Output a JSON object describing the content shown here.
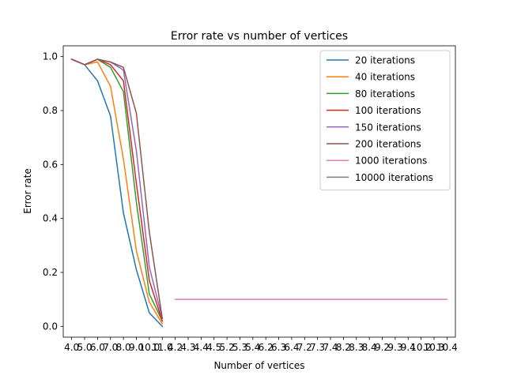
{
  "chart_data": {
    "type": "line",
    "title": "Error rate vs number of vertices",
    "xlabel": "Number of vertices",
    "ylabel": "Error rate",
    "x": [
      "4.0",
      "5.0",
      "6.0",
      "7.0",
      "8.0",
      "9.0",
      "10.0",
      "11.0",
      "4.2",
      "4.3",
      "4.4",
      "4.5",
      "5.2",
      "5.3",
      "5.4",
      "6.2",
      "6.3",
      "6.4",
      "7.2",
      "7.3",
      "7.4",
      "8.2",
      "8.3",
      "8.4",
      "9.2",
      "9.3",
      "9.4",
      "10.2",
      "10.3",
      "10.4"
    ],
    "ylim": [
      -0.04,
      1.04
    ],
    "yticks": [
      0.0,
      0.2,
      0.4,
      0.6,
      0.8,
      1.0
    ],
    "ytick_labels": [
      "0.0",
      "0.2",
      "0.4",
      "0.6",
      "0.8",
      "1.0"
    ],
    "legend_position": "top-right",
    "grid": false,
    "series": [
      {
        "name": "20 iterations",
        "color": "#1f77b4",
        "points": [
          [
            0,
            0.99
          ],
          [
            1,
            0.97
          ],
          [
            2,
            0.91
          ],
          [
            3,
            0.78
          ],
          [
            4,
            0.42
          ],
          [
            5,
            0.21
          ],
          [
            6,
            0.05
          ],
          [
            7,
            0.0
          ]
        ]
      },
      {
        "name": "40 iterations",
        "color": "#ff7f0e",
        "points": [
          [
            0,
            0.99
          ],
          [
            1,
            0.97
          ],
          [
            2,
            0.98
          ],
          [
            3,
            0.89
          ],
          [
            4,
            0.62
          ],
          [
            5,
            0.28
          ],
          [
            6,
            0.09
          ],
          [
            7,
            0.01
          ]
        ]
      },
      {
        "name": "80 iterations",
        "color": "#2ca02c",
        "points": [
          [
            0,
            0.99
          ],
          [
            1,
            0.97
          ],
          [
            2,
            0.99
          ],
          [
            3,
            0.96
          ],
          [
            4,
            0.87
          ],
          [
            5,
            0.46
          ],
          [
            6,
            0.12
          ],
          [
            7,
            0.02
          ]
        ]
      },
      {
        "name": "100 iterations",
        "color": "#d62728",
        "points": [
          [
            0,
            0.99
          ],
          [
            1,
            0.97
          ],
          [
            2,
            0.99
          ],
          [
            3,
            0.97
          ],
          [
            4,
            0.91
          ],
          [
            5,
            0.53
          ],
          [
            6,
            0.17
          ],
          [
            7,
            0.02
          ]
        ]
      },
      {
        "name": "150 iterations",
        "color": "#9467bd",
        "points": [
          [
            0,
            0.99
          ],
          [
            1,
            0.97
          ],
          [
            2,
            0.99
          ],
          [
            3,
            0.98
          ],
          [
            4,
            0.95
          ],
          [
            5,
            0.65
          ],
          [
            6,
            0.22
          ],
          [
            7,
            0.03
          ]
        ]
      },
      {
        "name": "200 iterations",
        "color": "#8c564b",
        "points": [
          [
            0,
            0.99
          ],
          [
            1,
            0.97
          ],
          [
            2,
            0.99
          ],
          [
            3,
            0.98
          ],
          [
            4,
            0.96
          ],
          [
            5,
            0.79
          ],
          [
            6,
            0.35
          ],
          [
            7,
            0.03
          ]
        ]
      },
      {
        "name": "1000 iterations",
        "color": "#e377c2",
        "points": [
          [
            8,
            0.1
          ],
          [
            9,
            0.1
          ],
          [
            10,
            0.1
          ],
          [
            11,
            0.1
          ],
          [
            12,
            0.1
          ],
          [
            13,
            0.1
          ],
          [
            14,
            0.1
          ],
          [
            15,
            0.1
          ],
          [
            16,
            0.1
          ],
          [
            17,
            0.1
          ],
          [
            18,
            0.1
          ],
          [
            19,
            0.1
          ],
          [
            20,
            0.1
          ],
          [
            21,
            0.1
          ],
          [
            22,
            0.1
          ],
          [
            23,
            0.1
          ],
          [
            24,
            0.1
          ],
          [
            25,
            0.1
          ],
          [
            26,
            0.1
          ],
          [
            27,
            0.1
          ],
          [
            28,
            0.1
          ],
          [
            29,
            0.1
          ]
        ]
      },
      {
        "name": "10000 iterations",
        "color": "#7f7f7f",
        "points": []
      }
    ]
  }
}
